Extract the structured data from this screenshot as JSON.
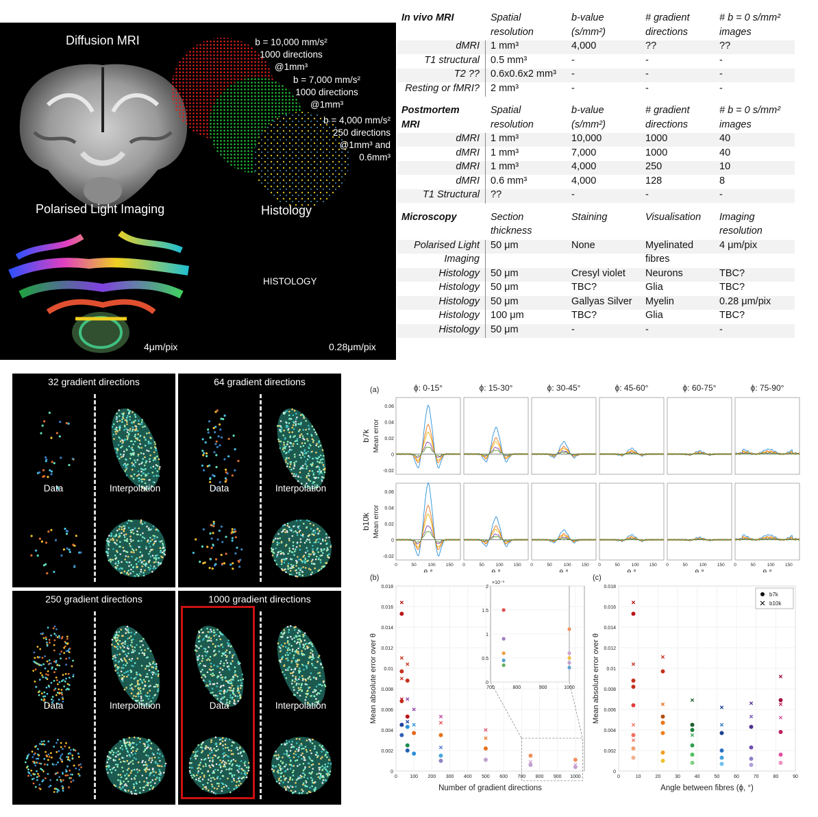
{
  "top_left": {
    "diffusion_title": "Diffusion MRI",
    "shell1": [
      "b = 10,000 mm/s²",
      "1000 directions",
      "@1mm³"
    ],
    "shell2": [
      "b = 7,000 mm/s²",
      "1000 directions",
      "@1mm³"
    ],
    "shell3": [
      "b = 4,000 mm/s²",
      "250 directions",
      "@1mm³ and",
      "0.6mm³"
    ],
    "pli_title": "Polarised Light Imaging",
    "histology_title": "Histology",
    "histology_placeholder": "HISTOLOGY",
    "pli_res": "4μm/pix",
    "hist_res": "0.28μm/pix",
    "colors": {
      "shell1": "#e02020",
      "shell2": "#22c23a",
      "shell3": "#d8c020"
    }
  },
  "table": {
    "invivo": {
      "header": [
        "In vivo MRI",
        "Spatial",
        "b-value",
        "# gradient",
        "# b = 0 s/mm²"
      ],
      "header2": [
        "",
        "resolution",
        "(s/mm²)",
        "directions",
        "images"
      ],
      "rows": [
        [
          "dMRI",
          "1 mm³",
          "4,000",
          "??",
          "??"
        ],
        [
          "T1 structural",
          "0.5 mm³",
          "-",
          "-",
          "-"
        ],
        [
          "T2 ??",
          "0.6x0.6x2 mm³",
          "-",
          "-",
          "-"
        ],
        [
          "Resting or fMRI?",
          "2 mm³",
          "-",
          "-",
          "-"
        ]
      ]
    },
    "postmortem": {
      "header": [
        "Postmortem",
        "Spatial",
        "b-value",
        "# gradient",
        "# b = 0 s/mm²"
      ],
      "header2": [
        "MRI",
        "resolution",
        "(s/mm²)",
        "directions",
        "images"
      ],
      "rows": [
        [
          "dMRI",
          "1 mm³",
          "10,000",
          "1000",
          "40"
        ],
        [
          "dMRI",
          "1 mm³",
          "7,000",
          "1000",
          "40"
        ],
        [
          "dMRI",
          "1 mm³",
          "4,000",
          "250",
          "10"
        ],
        [
          "dMRI",
          "0.6 mm³",
          "4,000",
          "128",
          "8"
        ],
        [
          "T1 Structural",
          "??",
          "-",
          "-",
          "-"
        ]
      ]
    },
    "microscopy": {
      "header": [
        "Microscopy",
        "Section",
        "Staining",
        "Visualisation",
        "Imaging"
      ],
      "header2": [
        "",
        "thickness",
        "",
        "",
        "resolution"
      ],
      "rows": [
        [
          "Polarised Light",
          "50 μm",
          "None",
          "Myelinated",
          "4 μm/pix"
        ],
        [
          "Imaging",
          "",
          "",
          "fibres",
          ""
        ],
        [
          "Histology",
          "50 μm",
          "Cresyl violet",
          "Neurons",
          "TBC?"
        ],
        [
          "Histology",
          "50 μm",
          "TBC?",
          "Glia",
          "TBC?"
        ],
        [
          "Histology",
          "50 μm",
          "Gallyas Silver",
          "Myelin",
          "0.28 μm/pix"
        ],
        [
          "Histology",
          "100 μm",
          "TBC?",
          "Glia",
          "TBC?"
        ],
        [
          "Histology",
          "50 μm",
          "-",
          "-",
          "-"
        ]
      ]
    }
  },
  "bottom_left": {
    "panels": [
      {
        "title": "32 gradient directions",
        "left": "Data",
        "right": "Interpolation"
      },
      {
        "title": "64 gradient directions",
        "left": "Data",
        "right": "Interpolation"
      },
      {
        "title": "250 gradient directions",
        "left": "Data",
        "right": "Interpolation"
      },
      {
        "title": "1000 gradient directions",
        "left": "Data",
        "right": "Interpolation"
      }
    ],
    "highlight_color": "#cc1111"
  },
  "chart_data": [
    {
      "type": "line",
      "label": "(a)",
      "panel_titles": [
        "ϕ: 0-15°",
        "ϕ: 15-30°",
        "ϕ: 30-45°",
        "ϕ: 45-60°",
        "ϕ: 60-75°",
        "ϕ: 75-90°"
      ],
      "row_labels": [
        "b7k",
        "b10k"
      ],
      "ylabel": "Mean error",
      "xlabel": "θ °",
      "xticks": [
        "0",
        "50",
        "100",
        "150"
      ],
      "yticks": [
        "-0.02",
        "0",
        "0.02",
        "0.04",
        "0.06"
      ],
      "ylim": [
        -0.025,
        0.07
      ],
      "peak_amplitude": {
        "b7k": [
          0.06,
          0.033,
          0.015,
          0.007,
          0.004,
          0.0
        ],
        "b10k": [
          0.07,
          0.028,
          0.012,
          0.006,
          0.003,
          0.0
        ]
      },
      "series_colors": [
        "#2a8fd8",
        "#e8711c",
        "#f0b400",
        "#8a3fa8",
        "#5aa02c"
      ]
    },
    {
      "type": "scatter",
      "label": "(b)",
      "xlabel": "Number of gradient directions",
      "ylabel": "Mean absolute error over θ",
      "xlim": [
        0,
        1050
      ],
      "ylim": [
        0,
        0.018
      ],
      "xticks": [
        "0",
        "100",
        "200",
        "300",
        "400",
        "500",
        "600",
        "700",
        "800",
        "900",
        "1000"
      ],
      "yticks": [
        "0",
        "0.002",
        "0.004",
        "0.006",
        "0.008",
        "0.01",
        "0.012",
        "0.014",
        "0.016",
        "0.018"
      ],
      "inset": {
        "xticks": [
          "700",
          "800",
          "900",
          "1000"
        ],
        "yticks": [
          "0",
          "0.5",
          "1",
          "1.5",
          "2"
        ],
        "yexp": "×10⁻³"
      },
      "points_b7k": [
        {
          "x": 32,
          "y": 0.0153,
          "c": "#b8161a"
        },
        {
          "x": 32,
          "y": 0.0097,
          "c": "#c4321c"
        },
        {
          "x": 32,
          "y": 0.0068,
          "c": "#c4321c"
        },
        {
          "x": 32,
          "y": 0.0045,
          "c": "#2040a0"
        },
        {
          "x": 32,
          "y": 0.0035,
          "c": "#3060b8"
        },
        {
          "x": 64,
          "y": 0.0088,
          "c": "#c4321c"
        },
        {
          "x": 64,
          "y": 0.0053,
          "c": "#b8161a"
        },
        {
          "x": 64,
          "y": 0.0043,
          "c": "#2a8fd8"
        },
        {
          "x": 64,
          "y": 0.0025,
          "c": "#1e8c50"
        },
        {
          "x": 64,
          "y": 0.002,
          "c": "#2060b0"
        },
        {
          "x": 100,
          "y": 0.0037,
          "c": "#e0691c"
        },
        {
          "x": 100,
          "y": 0.0017,
          "c": "#2a8fd8"
        },
        {
          "x": 250,
          "y": 0.0035,
          "c": "#e8711c"
        },
        {
          "x": 250,
          "y": 0.0015,
          "c": "#4aa8e0"
        },
        {
          "x": 250,
          "y": 0.001,
          "c": "#9080c0"
        },
        {
          "x": 500,
          "y": 0.0022,
          "c": "#e8711c"
        },
        {
          "x": 500,
          "y": 0.0011,
          "c": "#c0a0d0"
        },
        {
          "x": 750,
          "y": 0.0015,
          "c": "#f09060"
        },
        {
          "x": 750,
          "y": 0.0006,
          "c": "#c0a0d0"
        },
        {
          "x": 1000,
          "y": 0.0011,
          "c": "#f09060"
        },
        {
          "x": 1000,
          "y": 0.0004,
          "c": "#c0a0d0"
        }
      ],
      "points_b10k": [
        {
          "x": 32,
          "y": 0.0164,
          "c": "#b8161a"
        },
        {
          "x": 32,
          "y": 0.011,
          "c": "#c4321c"
        },
        {
          "x": 32,
          "y": 0.009,
          "c": "#c4321c"
        },
        {
          "x": 32,
          "y": 0.007,
          "c": "#b8161a"
        },
        {
          "x": 64,
          "y": 0.0104,
          "c": "#c4321c"
        },
        {
          "x": 64,
          "y": 0.007,
          "c": "#8a3fa8"
        },
        {
          "x": 64,
          "y": 0.0048,
          "c": "#2040a0"
        },
        {
          "x": 100,
          "y": 0.006,
          "c": "#8a3fa8"
        },
        {
          "x": 100,
          "y": 0.0045,
          "c": "#2a8fd8"
        },
        {
          "x": 250,
          "y": 0.0053,
          "c": "#c040a0"
        },
        {
          "x": 250,
          "y": 0.0047,
          "c": "#e05050"
        },
        {
          "x": 250,
          "y": 0.0023,
          "c": "#4a70d0"
        },
        {
          "x": 500,
          "y": 0.004,
          "c": "#e05070"
        },
        {
          "x": 500,
          "y": 0.0032,
          "c": "#e8711c"
        },
        {
          "x": 750,
          "y": 0.0009,
          "c": "#d0a0d0"
        },
        {
          "x": 1000,
          "y": 0.0006,
          "c": "#d0a0d0"
        }
      ]
    },
    {
      "type": "scatter",
      "label": "(c)",
      "xlabel": "Angle between fibres (ϕ, °)",
      "ylabel": "Mean absolute error over θ",
      "xlim": [
        0,
        90
      ],
      "ylim": [
        0,
        0.018
      ],
      "xticks": [
        "0",
        "10",
        "20",
        "30",
        "40",
        "50",
        "60",
        "70",
        "80",
        "90"
      ],
      "yticks": [
        "0",
        "0.002",
        "0.004",
        "0.006",
        "0.008",
        "0.01",
        "0.012",
        "0.014",
        "0.016",
        "0.018"
      ],
      "legend": [
        "b7k",
        "b10k"
      ],
      "legend_position": "top-right",
      "points_b7k": [
        {
          "x": 7.5,
          "y": 0.0153,
          "c": "#b8161a"
        },
        {
          "x": 7.5,
          "y": 0.0088,
          "c": "#c4321c"
        },
        {
          "x": 7.5,
          "y": 0.0082,
          "c": "#c4321c"
        },
        {
          "x": 7.5,
          "y": 0.0064,
          "c": "#e04040"
        },
        {
          "x": 7.5,
          "y": 0.0035,
          "c": "#f07060"
        },
        {
          "x": 7.5,
          "y": 0.0022,
          "c": "#f0a070"
        },
        {
          "x": 7.5,
          "y": 0.0013,
          "c": "#f0b090"
        },
        {
          "x": 22.5,
          "y": 0.0097,
          "c": "#c4321c"
        },
        {
          "x": 22.5,
          "y": 0.0053,
          "c": "#b05010"
        },
        {
          "x": 22.5,
          "y": 0.0047,
          "c": "#e0691c"
        },
        {
          "x": 22.5,
          "y": 0.0037,
          "c": "#f08020"
        },
        {
          "x": 22.5,
          "y": 0.0018,
          "c": "#f0a020"
        },
        {
          "x": 22.5,
          "y": 0.001,
          "c": "#f0c030"
        },
        {
          "x": 37.5,
          "y": 0.0045,
          "c": "#1e6030"
        },
        {
          "x": 37.5,
          "y": 0.004,
          "c": "#208040"
        },
        {
          "x": 37.5,
          "y": 0.0025,
          "c": "#30a050"
        },
        {
          "x": 37.5,
          "y": 0.0016,
          "c": "#50c060"
        },
        {
          "x": 37.5,
          "y": 0.0008,
          "c": "#80d080"
        },
        {
          "x": 52.5,
          "y": 0.0037,
          "c": "#1a4090"
        },
        {
          "x": 52.5,
          "y": 0.002,
          "c": "#2a70c0"
        },
        {
          "x": 52.5,
          "y": 0.0013,
          "c": "#40a0e0"
        },
        {
          "x": 52.5,
          "y": 0.0007,
          "c": "#70c0f0"
        },
        {
          "x": 67.5,
          "y": 0.0043,
          "c": "#503090"
        },
        {
          "x": 67.5,
          "y": 0.0023,
          "c": "#7050b0"
        },
        {
          "x": 67.5,
          "y": 0.0012,
          "c": "#9080c8"
        },
        {
          "x": 67.5,
          "y": 0.0006,
          "c": "#b0a0d8"
        },
        {
          "x": 82.5,
          "y": 0.0069,
          "c": "#a01040"
        },
        {
          "x": 82.5,
          "y": 0.0038,
          "c": "#c02060"
        },
        {
          "x": 82.5,
          "y": 0.0016,
          "c": "#e050a0"
        },
        {
          "x": 82.5,
          "y": 0.0008,
          "c": "#f090c0"
        }
      ],
      "points_b10k": [
        {
          "x": 7.5,
          "y": 0.0164,
          "c": "#b8161a"
        },
        {
          "x": 7.5,
          "y": 0.0104,
          "c": "#c4321c"
        },
        {
          "x": 7.5,
          "y": 0.0045,
          "c": "#f07060"
        },
        {
          "x": 7.5,
          "y": 0.003,
          "c": "#f07060"
        },
        {
          "x": 22.5,
          "y": 0.0111,
          "c": "#c4321c"
        },
        {
          "x": 22.5,
          "y": 0.0065,
          "c": "#e0691c"
        },
        {
          "x": 22.5,
          "y": 0.0047,
          "c": "#f08020"
        },
        {
          "x": 37.5,
          "y": 0.0069,
          "c": "#1e6030"
        },
        {
          "x": 37.5,
          "y": 0.0035,
          "c": "#30a050"
        },
        {
          "x": 52.5,
          "y": 0.0062,
          "c": "#1a4090"
        },
        {
          "x": 52.5,
          "y": 0.0045,
          "c": "#2a70c0"
        },
        {
          "x": 67.5,
          "y": 0.0066,
          "c": "#503090"
        },
        {
          "x": 67.5,
          "y": 0.0053,
          "c": "#7050b0"
        },
        {
          "x": 82.5,
          "y": 0.0092,
          "c": "#a01040"
        },
        {
          "x": 82.5,
          "y": 0.0065,
          "c": "#c02060"
        },
        {
          "x": 82.5,
          "y": 0.0052,
          "c": "#e050a0"
        }
      ]
    }
  ]
}
